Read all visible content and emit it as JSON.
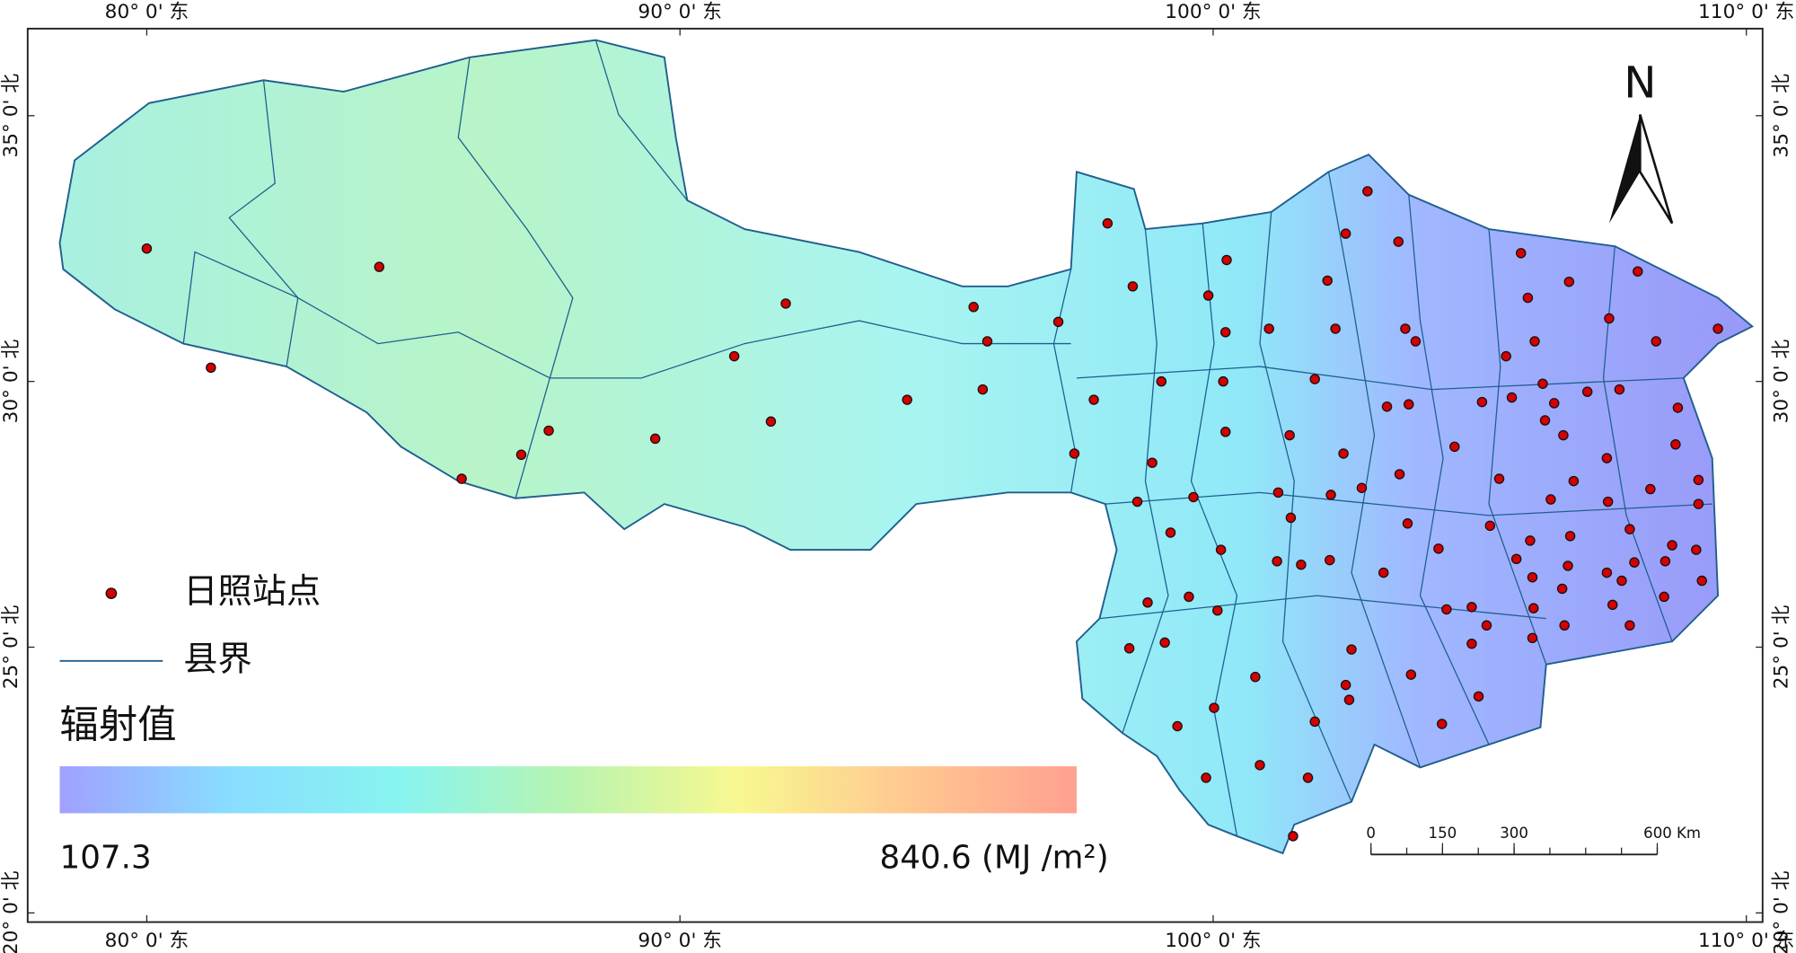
{
  "map": {
    "lon_ticks": [
      {
        "value": 80,
        "label": "80° 0' 东"
      },
      {
        "value": 90,
        "label": "90° 0' 东"
      },
      {
        "value": 100,
        "label": "100° 0' 东"
      },
      {
        "value": 110,
        "label": "110° 0' 东"
      }
    ],
    "lat_ticks": [
      {
        "value": 35,
        "label": "35° 0' 北"
      },
      {
        "value": 30,
        "label": "30° 0' 北"
      },
      {
        "value": 25,
        "label": "25° 0' 北"
      },
      {
        "value": 20,
        "label": "20° 0' 北"
      }
    ],
    "north_arrow": "N",
    "station_color": "#d40000",
    "legend": {
      "station": "日照站点",
      "boundary": "县界",
      "boundary_color": "#1f5f8f"
    },
    "colorbar": {
      "title": "辐射值",
      "min": 107.3,
      "max": 840.6,
      "max_label": "840.6 (MJ /m²)",
      "colors": [
        "#a0a0ff",
        "#88ddff",
        "#88f4f0",
        "#b8f4b0",
        "#f8f890",
        "#ffc890",
        "#ffa090"
      ]
    },
    "scale_bar": {
      "ticks": [
        0,
        150,
        300,
        {
          "value": 600,
          "label": "600 Km"
        }
      ]
    }
  }
}
